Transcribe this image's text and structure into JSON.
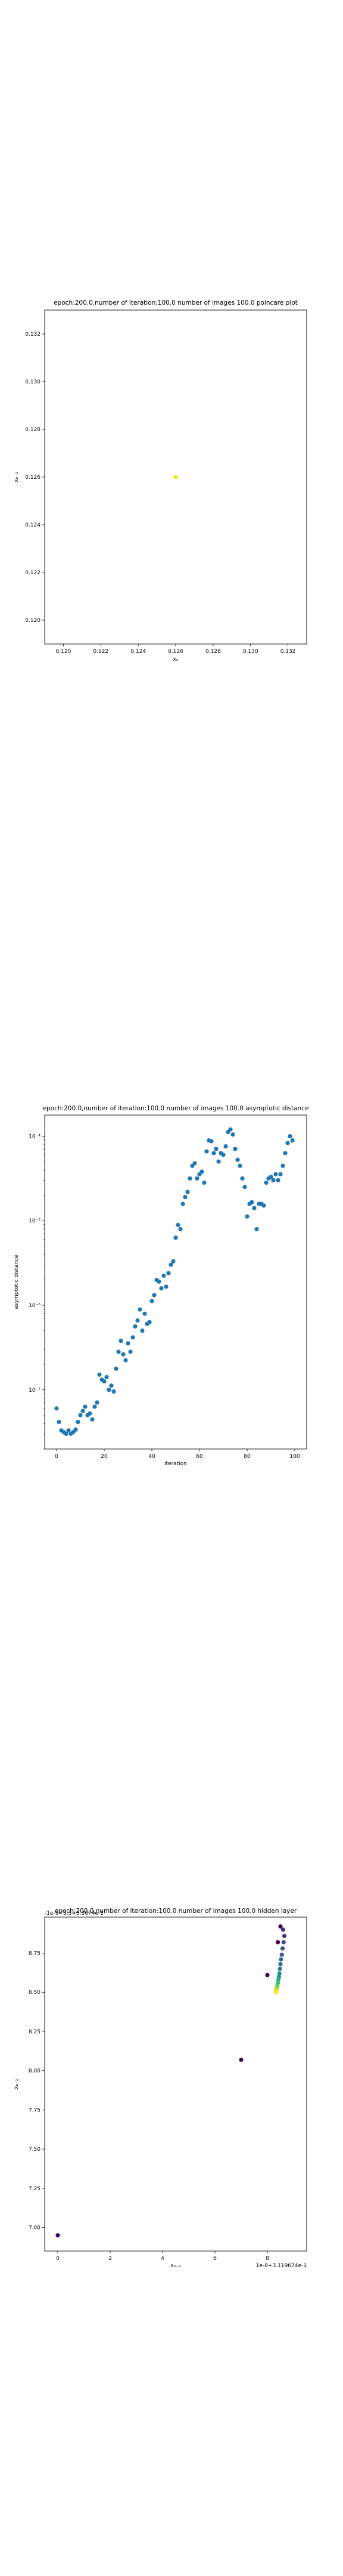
{
  "chart_data": [
    {
      "type": "scatter",
      "title": "epoch:200.0,number of iteration:100.0  number of images 100.0 poincare plot",
      "xlabel": "xₙ",
      "ylabel": "xₙ₋₁",
      "xlim": [
        0.119,
        0.133
      ],
      "ylim": [
        0.119,
        0.133
      ],
      "xticks": [
        "0.120",
        "0.122",
        "0.124",
        "0.126",
        "0.128",
        "0.130",
        "0.132"
      ],
      "yticks": [
        "0.120",
        "0.122",
        "0.124",
        "0.126",
        "0.128",
        "0.130",
        "0.132"
      ],
      "x": [
        0.126
      ],
      "y": [
        0.126
      ],
      "grid": false,
      "point_color": "#fde725"
    },
    {
      "type": "scatter",
      "title": "epoch:200.0,number of iteration:100.0  number of images 100.0 asymptotic distance",
      "xlabel": "iteration",
      "ylabel": "asymptotic distance",
      "xlim": [
        -5,
        105
      ],
      "xticks": [
        "0",
        "20",
        "40",
        "60",
        "80",
        "100"
      ],
      "yscale": "log",
      "ylim_log10": [
        -7.7,
        -3.75
      ],
      "yticks_log10": [
        -7,
        -6,
        -5,
        -4
      ],
      "yticks": [
        "10⁻⁷",
        "10⁻⁶",
        "10⁻⁵",
        "10⁻⁴"
      ],
      "x": [
        0,
        1,
        2,
        3,
        4,
        5,
        6,
        7,
        8,
        9,
        10,
        11,
        12,
        13,
        14,
        15,
        16,
        17,
        18,
        19,
        20,
        21,
        22,
        23,
        24,
        25,
        26,
        27,
        28,
        29,
        30,
        31,
        32,
        33,
        34,
        35,
        36,
        37,
        38,
        39,
        40,
        41,
        42,
        43,
        44,
        45,
        46,
        47,
        48,
        49,
        50,
        51,
        52,
        53,
        54,
        55,
        56,
        57,
        58,
        59,
        60,
        61,
        62,
        63,
        64,
        65,
        66,
        67,
        68,
        69,
        70,
        71,
        72,
        73,
        74,
        75,
        76,
        77,
        78,
        79,
        80,
        81,
        82,
        83,
        84,
        85,
        86,
        87,
        88,
        89,
        90,
        91,
        92,
        93,
        94,
        95,
        96,
        97,
        98,
        99
      ],
      "y_log10": [
        -7.22,
        -7.38,
        -7.48,
        -7.5,
        -7.52,
        -7.48,
        -7.52,
        -7.5,
        -7.47,
        -7.38,
        -7.3,
        -7.25,
        -7.2,
        -7.3,
        -7.28,
        -7.35,
        -7.2,
        -7.15,
        -6.82,
        -6.88,
        -6.9,
        -6.85,
        -7.0,
        -6.95,
        -7.02,
        -6.75,
        -6.55,
        -6.42,
        -6.58,
        -6.65,
        -6.45,
        -6.55,
        -6.38,
        -6.25,
        -6.18,
        -6.05,
        -6.3,
        -6.1,
        -6.22,
        -6.2,
        -5.95,
        -5.88,
        -5.7,
        -5.72,
        -5.8,
        -5.65,
        -5.78,
        -5.62,
        -5.52,
        -5.48,
        -5.2,
        -5.05,
        -5.1,
        -4.8,
        -4.72,
        -4.66,
        -4.5,
        -4.35,
        -4.32,
        -4.5,
        -4.45,
        -4.42,
        -4.55,
        -4.18,
        -4.05,
        -4.06,
        -4.2,
        -4.15,
        -4.3,
        -4.2,
        -4.22,
        -4.12,
        -3.95,
        -3.92,
        -3.98,
        -4.15,
        -4.28,
        -4.35,
        -4.5,
        -4.6,
        -4.95,
        -4.8,
        -4.78,
        -4.85,
        -5.1,
        -4.8,
        -4.8,
        -4.82,
        -4.55,
        -4.5,
        -4.48,
        -4.52,
        -4.45,
        -4.52,
        -4.45,
        -4.35,
        -4.2,
        -4.08,
        -4.0,
        -4.05
      ],
      "grid": false,
      "point_color": "#1f77b4"
    },
    {
      "type": "scatter",
      "title": "epoch:200.0,number of iteration:100.0  number of images 100.0 hidden layer",
      "offset_text": "-1e-9+3.3+3.3674e-1",
      "xlabel": "xₙ₋₂",
      "ylabel": "xₙ₋₁",
      "xaxis_offset": "1e-8+3.119674e-1",
      "xlim": [
        -0.5,
        9.5
      ],
      "xticks_values": [
        0,
        2,
        4,
        6,
        8
      ],
      "xticks": [
        "0",
        "2",
        "4",
        "6",
        "8"
      ],
      "ylim": [
        6.85,
        8.98
      ],
      "yticks_values": [
        7.0,
        7.25,
        7.5,
        7.75,
        8.0,
        8.25,
        8.5,
        8.75
      ],
      "yticks": [
        "7.00",
        "7.25",
        "7.50",
        "7.75",
        "8.00",
        "8.25",
        "8.50",
        "8.75"
      ],
      "points": [
        {
          "x": 0.0,
          "y": 6.95,
          "color": "#440154"
        },
        {
          "x": 7.0,
          "y": 8.07,
          "color": "#440154"
        },
        {
          "x": 8.0,
          "y": 8.61,
          "color": "#440154"
        },
        {
          "x": 8.4,
          "y": 8.82,
          "color": "#440154"
        },
        {
          "x": 8.5,
          "y": 8.92,
          "color": "#440154"
        },
        {
          "x": 8.6,
          "y": 8.9,
          "color": "#46327e"
        },
        {
          "x": 8.65,
          "y": 8.86,
          "color": "#46327e"
        },
        {
          "x": 8.62,
          "y": 8.82,
          "color": "#3b528b"
        },
        {
          "x": 8.58,
          "y": 8.78,
          "color": "#3b528b"
        },
        {
          "x": 8.55,
          "y": 8.74,
          "color": "#365d8d"
        },
        {
          "x": 8.52,
          "y": 8.71,
          "color": "#31688e"
        },
        {
          "x": 8.5,
          "y": 8.68,
          "color": "#2c728e"
        },
        {
          "x": 8.48,
          "y": 8.65,
          "color": "#287c8e"
        },
        {
          "x": 8.46,
          "y": 8.62,
          "color": "#21908d"
        },
        {
          "x": 8.44,
          "y": 8.6,
          "color": "#1f9a8a"
        },
        {
          "x": 8.42,
          "y": 8.58,
          "color": "#27ad81"
        },
        {
          "x": 8.4,
          "y": 8.56,
          "color": "#3fbc73"
        },
        {
          "x": 8.38,
          "y": 8.54,
          "color": "#5ec962"
        },
        {
          "x": 8.36,
          "y": 8.53,
          "color": "#84d44b"
        },
        {
          "x": 8.35,
          "y": 8.52,
          "color": "#addc30"
        },
        {
          "x": 8.33,
          "y": 8.51,
          "color": "#d8e219"
        },
        {
          "x": 8.32,
          "y": 8.5,
          "color": "#fde725"
        }
      ],
      "grid": false
    }
  ]
}
